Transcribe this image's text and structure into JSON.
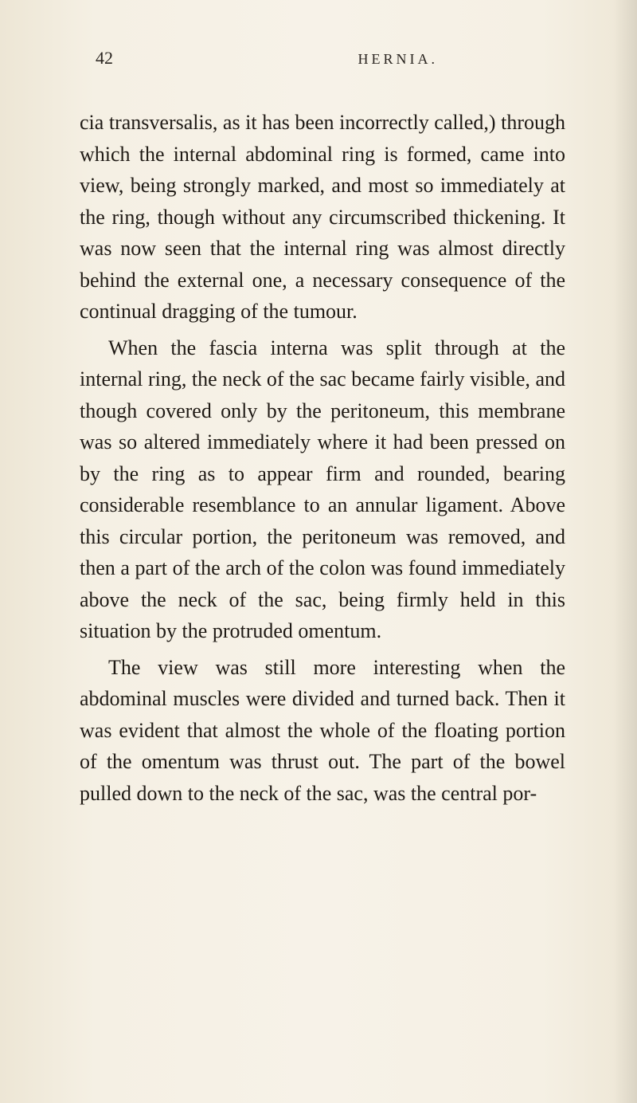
{
  "page": {
    "number": "42",
    "running_title": "HERNIA.",
    "background_color": "#f5f0e4",
    "text_color": "#1f1a15",
    "font_family": "Georgia, serif",
    "body_fontsize": 26,
    "line_height": 1.52,
    "header_fontsize": 22,
    "title_fontsize": 18,
    "title_letterspacing": 4
  },
  "paragraphs": {
    "p1": "cia transversalis, as it has been incorrectly called,) through which the internal abdominal ring is formed, came into view, being strongly marked, and most so immediately at the ring, though without any circumscribed thickening. It was now seen that the internal ring was almost directly behind the external one, a necessary consequence of the continual dragging of the tumour.",
    "p2": "When the fascia interna was split through at the internal ring, the neck of the sac became fairly visible, and though covered only by the peritoneum, this membrane was so altered immediately where it had been pressed on by the ring as to appear firm and rounded, bearing considerable resemblance to an annular ligament. Above this circular portion, the peritoneum was removed, and then a part of the arch of the colon was found immediately above the neck of the sac, being firmly held in this situation by the protruded omentum.",
    "p3": "The view was still more interesting when the abdominal muscles were divided and turned back. Then it was evident that almost the whole of the floating portion of the omentum was thrust out. The part of the bowel pulled down to the neck of the sac, was the central por-"
  }
}
